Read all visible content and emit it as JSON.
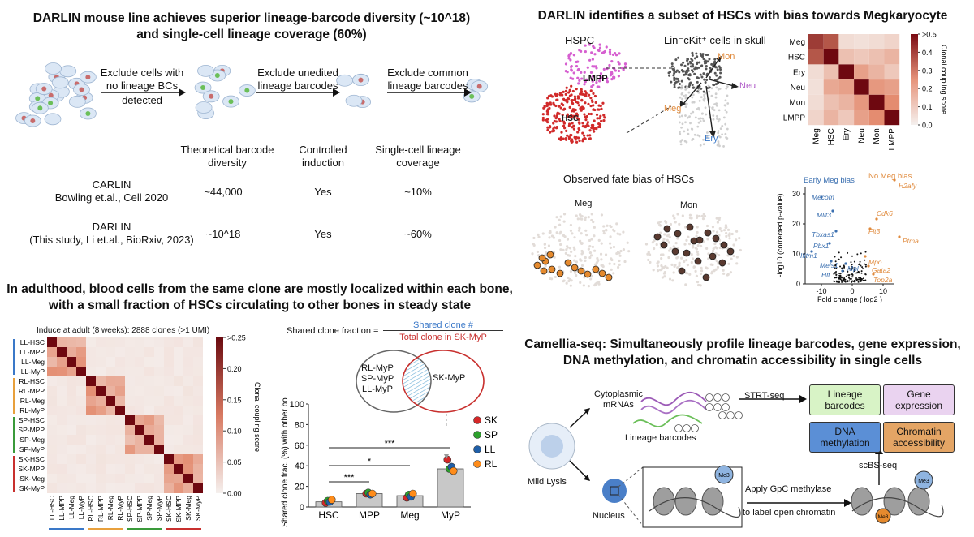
{
  "panel_a": {
    "title_line1": "DARLIN mouse line achieves superior lineage-barcode diversity (~10^18)",
    "title_line2": "and single-cell lineage coverage (60%)",
    "step1": "Exclude cells with no lineage BCs",
    "step1_below": "detected",
    "step2": "Exclude unedited lineage barcodes",
    "step3": "Exclude common lineage barcodes",
    "col_headers": [
      "Theoretical barcode diversity",
      "Controlled induction",
      "Single-cell lineage coverage"
    ],
    "rows": [
      {
        "name_line1": "CARLIN",
        "name_line2": "Bowling et.al., Cell 2020",
        "diversity": "~44,000",
        "induction": "Yes",
        "coverage": "~10%"
      },
      {
        "name_line1": "DARLIN",
        "name_line2": "(This study, Li et.al., BioRxiv, 2023)",
        "diversity": "~10^18",
        "induction": "Yes",
        "coverage": "~60%"
      }
    ]
  },
  "panel_b": {
    "title": "DARLIN identifies a subset of HSCs with bias towards Megkaryocyte",
    "hspc_label": "HSPC",
    "lmpp_label": "LMPP",
    "hsc_label": "HSC",
    "lin_label": "Lin⁻cKit⁺ cells in skull",
    "fates": [
      "Mon",
      "Neu",
      "Meg",
      "Ery"
    ],
    "heatmap_rows": [
      "Meg",
      "HSC",
      "Ery",
      "Neu",
      "Mon",
      "LMPP"
    ],
    "heatmap_cols": [
      "Meg",
      "HSC",
      "Ery",
      "Neu",
      "Mon",
      "LMPP"
    ],
    "heatmap_values": [
      [
        0.4,
        0.35,
        0.05,
        0.04,
        0.05,
        0.07
      ],
      [
        0.35,
        0.5,
        0.12,
        0.1,
        0.12,
        0.15
      ],
      [
        0.05,
        0.12,
        0.5,
        0.2,
        0.15,
        0.1
      ],
      [
        0.04,
        0.18,
        0.2,
        0.5,
        0.22,
        0.2
      ],
      [
        0.05,
        0.12,
        0.15,
        0.22,
        0.5,
        0.25
      ],
      [
        0.07,
        0.15,
        0.1,
        0.2,
        0.25,
        0.5
      ]
    ],
    "colorbar_ticks": [
      ">0.5",
      "0.4",
      "0.3",
      "0.2",
      "0.1",
      "0.0"
    ],
    "colorbar_label": "Clonal coupling score",
    "fate_bias_title": "Observed fate bias of HSCs",
    "umap_meg": "Meg",
    "umap_mon": "Mon",
    "volcano_early": "Early Meg bias",
    "volcano_no": "No Meg bias",
    "volcano_genes_left": [
      "Mecom",
      "Mllt3",
      "Tbxas1",
      "Pbx1",
      "Ifitm1",
      "Meis1",
      "Hlf",
      "Mpl"
    ],
    "volcano_genes_right": [
      "H2afy",
      "Cdk6",
      "Ptma",
      "Flt3",
      "Mpo",
      "Gata2",
      "Top2a"
    ],
    "volcano_ylabel": "-log10 (corrected p-value)",
    "volcano_xlabel": "Fold change ( log2 )",
    "volcano_xticks": [
      "-10",
      "0",
      "10"
    ],
    "volcano_yticks": [
      "0",
      "10",
      "20",
      "30"
    ]
  },
  "panel_c": {
    "title_line1": "In adulthood, blood cells from the same clone are mostly localized within each bone,",
    "title_line2": "with a small fraction of HSCs circulating to other bones in steady state",
    "heatmap_title": "Induce at adult (8 weeks):  2888 clones (>1 UMI)",
    "labels": [
      "LL-HSC",
      "LL-MPP",
      "LL-Meg",
      "LL-MyP",
      "RL-HSC",
      "RL-MPP",
      "RL-Meg",
      "RL-MyP",
      "SP-HSC",
      "SP-MPP",
      "SP-Meg",
      "SP-MyP",
      "SK-HSC",
      "SK-MPP",
      "SK-Meg",
      "SK-MyP"
    ],
    "colorbar_ticks": [
      ">0.25",
      "0.20",
      "0.15",
      "0.10",
      "0.05",
      "0.00"
    ],
    "colorbar_label": "Clonal coupling score",
    "formula_left": "Shared clone fraction =",
    "formula_num": "Shared clone #",
    "formula_den": "Total clone in SK-MyP",
    "venn_left": [
      "RL-MyP",
      "SP-MyP",
      "LL-MyP"
    ],
    "venn_right": "SK-MyP",
    "bar_ylabel": "Shared clone frac. (%) with other bones",
    "chart_data": {
      "type": "bar",
      "categories": [
        "HSC",
        "MPP",
        "Meg",
        "MyP"
      ],
      "values": [
        5,
        13,
        11,
        37
      ],
      "ylim": [
        0,
        100
      ],
      "yticks": [
        0,
        20,
        40,
        60,
        80,
        100
      ],
      "ylabel": "Shared clone frac. (%) with other bones",
      "points": {
        "SK": [
          4,
          13,
          9,
          46
        ],
        "SP": [
          6,
          14,
          12,
          37
        ],
        "LL": [
          5,
          12,
          10,
          39
        ],
        "RL": [
          7,
          13,
          13,
          35
        ]
      },
      "significance": [
        "***",
        "*",
        "***"
      ],
      "legend": [
        "SK",
        "SP",
        "LL",
        "RL"
      ]
    },
    "legend_colors": [
      "#d62728",
      "#2ca02c",
      "#1f5fa8",
      "#ff8c1a"
    ]
  },
  "panel_d": {
    "title_line1": "Camellia-seq: Simultaneously profile lineage barcodes, gene expression,",
    "title_line2": "DNA methylation, and chromatin accessibility in single cells",
    "cyto": "Cytoplasmic mRNAs",
    "lineage_bc": "Lineage barcodes",
    "strt": "STRT-seq",
    "mild_lysis": "Mild Lysis",
    "nucleus": "Nucleus",
    "me3": "Me3",
    "gpc_line1": "Apply GpC methylase",
    "gpc_line2": "to label open chromatin",
    "scbs": "scBS-seq",
    "out_lineage": "Lineage barcodes",
    "out_gene": "Gene expression",
    "out_dna": "DNA methylation",
    "out_chrom": "Chromatin accessibility"
  }
}
